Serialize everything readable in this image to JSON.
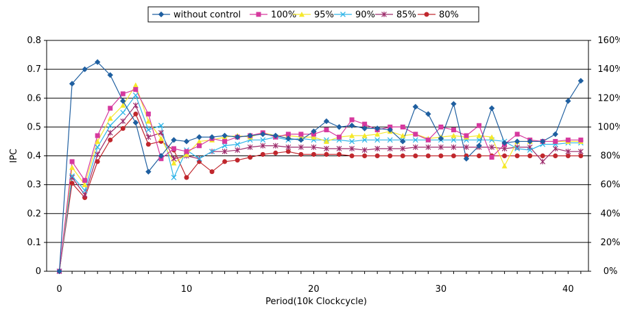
{
  "chart_data": {
    "type": "line",
    "title": "",
    "xlabel": "Period(10k Clockcycle)",
    "ylabel": "IPC",
    "xlim": [
      0,
      41
    ],
    "ylim": [
      0,
      0.8
    ],
    "y2lim": [
      0,
      1.6
    ],
    "x_ticks": [
      0,
      10,
      20,
      30,
      40
    ],
    "y_ticks": [
      0,
      0.1,
      0.2,
      0.3,
      0.4,
      0.5,
      0.6,
      0.7,
      0.8
    ],
    "x_tick_labels": [
      "0",
      "10",
      "20",
      "30",
      "40"
    ],
    "y_tick_labels": [
      "0",
      "0.1",
      "0.2",
      "0.3",
      "0.4",
      "0.5",
      "0.6",
      "0.7",
      "0.8"
    ],
    "y2_tick_labels": [
      "0%",
      "20%",
      "40%",
      "60%",
      "80%",
      "100%",
      "120%",
      "140%",
      "160%"
    ],
    "grid": "horizontal",
    "legend_position": "top",
    "x": [
      0,
      1,
      2,
      3,
      4,
      5,
      6,
      7,
      8,
      9,
      10,
      11,
      12,
      13,
      14,
      15,
      16,
      17,
      18,
      19,
      20,
      21,
      22,
      23,
      24,
      25,
      26,
      27,
      28,
      29,
      30,
      31,
      32,
      33,
      34,
      35,
      36,
      37,
      38,
      39,
      40,
      41
    ],
    "series": [
      {
        "name": "without control",
        "color": "#1f5fa0",
        "marker": "diamond",
        "axis": "left",
        "values": [
          0,
          0.65,
          0.7,
          0.725,
          0.68,
          0.59,
          0.515,
          0.345,
          0.4,
          0.455,
          0.45,
          0.465,
          0.465,
          0.47,
          0.465,
          0.47,
          0.475,
          0.47,
          0.46,
          0.455,
          0.485,
          0.52,
          0.5,
          0.505,
          0.495,
          0.495,
          0.49,
          0.45,
          0.57,
          0.545,
          0.46,
          0.58,
          0.39,
          0.435,
          0.565,
          0.445,
          0.45,
          0.45,
          0.45,
          0.475,
          0.59,
          0.66
        ]
      },
      {
        "name": "100%",
        "color": "#d6399e",
        "marker": "square",
        "axis": "left",
        "values": [
          0,
          0.38,
          0.315,
          0.47,
          0.565,
          0.615,
          0.63,
          0.545,
          0.39,
          0.425,
          0.415,
          0.435,
          0.46,
          0.45,
          0.465,
          0.47,
          0.48,
          0.465,
          0.475,
          0.475,
          0.475,
          0.49,
          0.465,
          0.525,
          0.51,
          0.49,
          0.5,
          0.5,
          0.475,
          0.455,
          0.5,
          0.49,
          0.47,
          0.505,
          0.395,
          0.44,
          0.475,
          0.455,
          0.45,
          0.45,
          0.455,
          0.455
        ]
      },
      {
        "name": "95%",
        "color": "#f5e82a",
        "marker": "triangle",
        "axis": "left",
        "values": [
          0,
          0.36,
          0.3,
          0.45,
          0.53,
          0.575,
          0.645,
          0.52,
          0.46,
          0.375,
          0.405,
          0.45,
          0.455,
          0.465,
          0.47,
          0.465,
          0.48,
          0.47,
          0.47,
          0.465,
          0.465,
          0.45,
          0.465,
          0.47,
          0.47,
          0.475,
          0.485,
          0.47,
          0.475,
          0.46,
          0.465,
          0.47,
          0.465,
          0.47,
          0.465,
          0.365,
          0.45,
          0.45,
          0.45,
          0.45,
          0.45,
          0.45
        ]
      },
      {
        "name": "90%",
        "color": "#2fb5e8",
        "marker": "x",
        "axis": "left",
        "values": [
          0,
          0.33,
          0.28,
          0.43,
          0.505,
          0.55,
          0.61,
          0.49,
          0.505,
          0.325,
          0.42,
          0.39,
          0.415,
          0.435,
          0.44,
          0.455,
          0.455,
          0.465,
          0.455,
          0.46,
          0.455,
          0.455,
          0.455,
          0.45,
          0.455,
          0.455,
          0.455,
          0.455,
          0.455,
          0.455,
          0.455,
          0.455,
          0.455,
          0.455,
          0.455,
          0.45,
          0.425,
          0.42,
          0.44,
          0.44,
          0.445,
          0.445
        ]
      },
      {
        "name": "85%",
        "color": "#9c2a6a",
        "marker": "star",
        "axis": "left",
        "values": [
          0,
          0.325,
          0.265,
          0.405,
          0.48,
          0.52,
          0.575,
          0.465,
          0.48,
          0.39,
          0.4,
          0.39,
          0.415,
          0.415,
          0.42,
          0.43,
          0.435,
          0.435,
          0.43,
          0.43,
          0.43,
          0.425,
          0.425,
          0.425,
          0.42,
          0.425,
          0.425,
          0.425,
          0.43,
          0.43,
          0.43,
          0.43,
          0.43,
          0.43,
          0.43,
          0.425,
          0.43,
          0.43,
          0.38,
          0.425,
          0.415,
          0.415
        ]
      },
      {
        "name": "80%",
        "color": "#c0272d",
        "marker": "circle",
        "axis": "left",
        "values": [
          0,
          0.305,
          0.255,
          0.38,
          0.455,
          0.495,
          0.545,
          0.44,
          0.45,
          0.42,
          0.325,
          0.38,
          0.345,
          0.38,
          0.385,
          0.395,
          0.405,
          0.41,
          0.415,
          0.405,
          0.405,
          0.405,
          0.405,
          0.4,
          0.4,
          0.4,
          0.4,
          0.4,
          0.4,
          0.4,
          0.4,
          0.4,
          0.4,
          0.4,
          0.4,
          0.4,
          0.4,
          0.4,
          0.4,
          0.4,
          0.4,
          0.4
        ]
      }
    ]
  }
}
